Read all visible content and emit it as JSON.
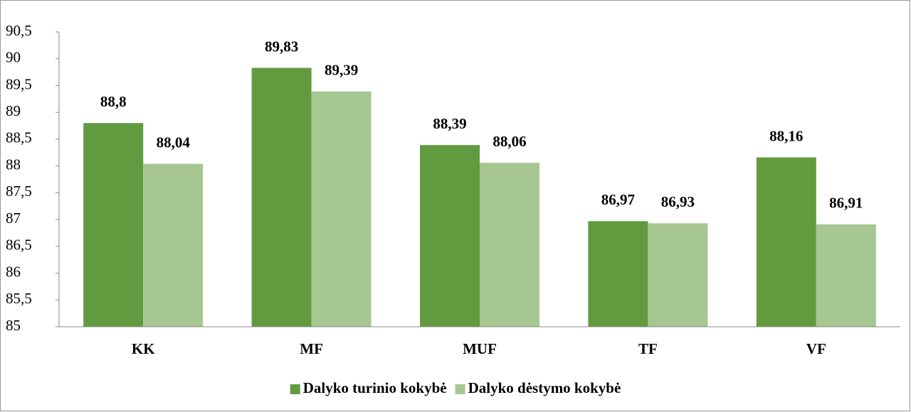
{
  "chart_data": {
    "type": "bar",
    "categories": [
      "KK",
      "MF",
      "MUF",
      "TF",
      "VF"
    ],
    "series": [
      {
        "name": "Dalyko turinio kokybė",
        "color": "#629b3f",
        "values": [
          88.8,
          89.83,
          88.39,
          86.97,
          88.16
        ],
        "value_labels": [
          "88,8",
          "89,83",
          "88,39",
          "86,97",
          "88,16"
        ]
      },
      {
        "name": "Dalyko dėstymo kokybė",
        "color": "#a6c692",
        "values": [
          88.04,
          89.39,
          88.06,
          86.93,
          86.91
        ],
        "value_labels": [
          "88,04",
          "89,39",
          "88,06",
          "86,93",
          "86,91"
        ]
      }
    ],
    "ylim": [
      85,
      90.5
    ],
    "yticks": [
      85,
      {
        "value": 85.5,
        "label": "85,5"
      },
      86,
      {
        "value": 86.5,
        "label": "86,5"
      },
      87,
      {
        "value": 87.5,
        "label": "87,5"
      },
      88,
      {
        "value": 88.5,
        "label": "88,5"
      },
      89,
      {
        "value": 89.5,
        "label": "89,5"
      },
      90,
      {
        "value": 90.5,
        "label": "90,5"
      }
    ],
    "legend": "bottom"
  }
}
